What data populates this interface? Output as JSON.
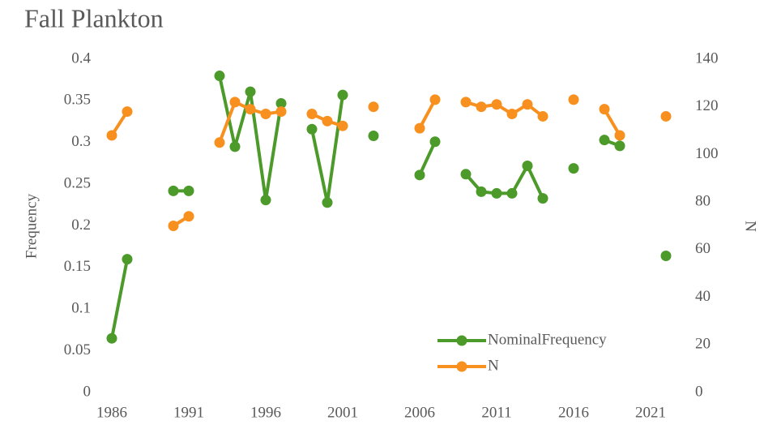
{
  "chart_data": {
    "type": "line",
    "title": "Fall Plankton",
    "x": [
      1986,
      1987,
      1988,
      1989,
      1990,
      1991,
      1992,
      1993,
      1994,
      1995,
      1996,
      1997,
      1998,
      1999,
      2000,
      2001,
      2002,
      2003,
      2004,
      2005,
      2006,
      2007,
      2008,
      2009,
      2010,
      2011,
      2012,
      2013,
      2014,
      2015,
      2016,
      2017,
      2018,
      2019,
      2020,
      2021,
      2022
    ],
    "series": [
      {
        "name": "NominalFrequency",
        "color": "#4c9a2a",
        "values": [
          0.065,
          0.16,
          null,
          null,
          0.242,
          0.242,
          null,
          0.38,
          0.295,
          0.361,
          0.231,
          0.347,
          null,
          0.316,
          0.228,
          0.357,
          null,
          0.308,
          null,
          null,
          0.261,
          0.301,
          null,
          0.262,
          0.241,
          0.239,
          0.239,
          0.272,
          0.233,
          null,
          0.269,
          null,
          0.303,
          0.296,
          null,
          null,
          0.164
        ]
      },
      {
        "name": "N",
        "color": "#f7901e",
        "axis": "y2",
        "values": [
          108,
          118,
          null,
          null,
          70,
          74,
          null,
          105,
          122,
          119,
          117,
          118,
          null,
          117,
          114,
          112,
          null,
          120,
          null,
          null,
          111,
          123,
          null,
          122,
          120,
          121,
          117,
          121,
          116,
          null,
          123,
          null,
          119,
          108,
          null,
          null,
          116
        ]
      }
    ],
    "y_label": "Frequency",
    "y2_label": "N",
    "xlim": [
      1985,
      2023
    ],
    "xticks": [
      1986,
      1991,
      1996,
      2001,
      2006,
      2011,
      2016,
      2021
    ],
    "ylim": [
      0,
      0.4
    ],
    "yticks": [
      0,
      0.05,
      0.1,
      0.15,
      0.2,
      0.25,
      0.3,
      0.35,
      0.4
    ],
    "y2lim": [
      0,
      140
    ],
    "y2ticks": [
      0,
      20,
      40,
      60,
      80,
      100,
      120,
      140
    ],
    "grid": false,
    "legend": "lower right"
  }
}
